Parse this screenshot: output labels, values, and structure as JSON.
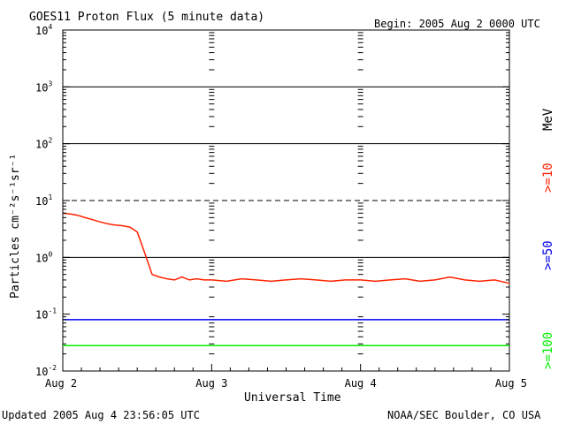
{
  "chart_data": {
    "type": "line",
    "title": "GOES11 Proton Flux (5 minute data)",
    "begin_label": "Begin: 2005 Aug 2 0000 UTC",
    "xlabel": "Universal Time",
    "ylabel": "Particles cm⁻²s⁻¹sr⁻¹",
    "y_scale": "log",
    "ylim": [
      0.01,
      10000
    ],
    "x_unit": "days since 2005 Aug 2 0000 UTC",
    "xlim": [
      0,
      3
    ],
    "x_ticks": [
      {
        "x": 0,
        "label": "Aug 2"
      },
      {
        "x": 1,
        "label": "Aug 3"
      },
      {
        "x": 2,
        "label": "Aug 4"
      },
      {
        "x": 3,
        "label": "Aug 5"
      }
    ],
    "y_ticks": [
      {
        "value": 0.01,
        "base": "10",
        "exp": "-2"
      },
      {
        "value": 0.1,
        "base": "10",
        "exp": "-1"
      },
      {
        "value": 1,
        "base": "10",
        "exp": "0"
      },
      {
        "value": 10,
        "base": "10",
        "exp": "1"
      },
      {
        "value": 100,
        "base": "10",
        "exp": "2"
      },
      {
        "value": 1000,
        "base": "10",
        "exp": "3"
      },
      {
        "value": 10000,
        "base": "10",
        "exp": "4"
      }
    ],
    "threshold_lines": [
      {
        "value": 10,
        "style": "dashed"
      },
      {
        "value": 1,
        "style": "solid"
      },
      {
        "value": 100,
        "style": "solid"
      },
      {
        "value": 1000,
        "style": "solid"
      }
    ],
    "energy_unit": "MeV",
    "series": [
      {
        "name": ">=10",
        "color": "#ff2200",
        "x": [
          0.0,
          0.05,
          0.1,
          0.15,
          0.2,
          0.25,
          0.3,
          0.35,
          0.4,
          0.45,
          0.5,
          0.55,
          0.6,
          0.65,
          0.7,
          0.75,
          0.8,
          0.85,
          0.9,
          0.95,
          1.0,
          1.1,
          1.2,
          1.3,
          1.4,
          1.5,
          1.6,
          1.7,
          1.8,
          1.9,
          2.0,
          2.1,
          2.2,
          2.3,
          2.4,
          2.5,
          2.6,
          2.7,
          2.8,
          2.9,
          3.0
        ],
        "y": [
          6.0,
          5.8,
          5.5,
          5.0,
          4.6,
          4.2,
          3.9,
          3.7,
          3.6,
          3.4,
          2.8,
          1.2,
          0.5,
          0.45,
          0.42,
          0.4,
          0.45,
          0.4,
          0.42,
          0.4,
          0.4,
          0.38,
          0.42,
          0.4,
          0.38,
          0.4,
          0.42,
          0.4,
          0.38,
          0.4,
          0.4,
          0.38,
          0.4,
          0.42,
          0.38,
          0.4,
          0.45,
          0.4,
          0.38,
          0.4,
          0.35
        ]
      },
      {
        "name": ">=50",
        "color": "#0000ee",
        "x": [
          0.0,
          0.1,
          0.2,
          0.3,
          0.4,
          0.5,
          0.6,
          0.7,
          0.8,
          0.9,
          1.0,
          1.1,
          1.2,
          1.3,
          1.4,
          1.5,
          1.6,
          1.7,
          1.8,
          1.9,
          2.0,
          2.1,
          2.2,
          2.3,
          2.4,
          2.5,
          2.6,
          2.7,
          2.8,
          2.9,
          3.0
        ],
        "y": [
          0.08,
          0.08,
          0.08,
          0.08,
          0.08,
          0.08,
          0.08,
          0.08,
          0.08,
          0.08,
          0.08,
          0.08,
          0.08,
          0.08,
          0.08,
          0.08,
          0.08,
          0.08,
          0.08,
          0.08,
          0.08,
          0.08,
          0.08,
          0.08,
          0.08,
          0.08,
          0.08,
          0.08,
          0.08,
          0.08,
          0.08
        ]
      },
      {
        "name": ">=100",
        "color": "#00ee00",
        "x": [
          0.0,
          0.1,
          0.2,
          0.3,
          0.4,
          0.5,
          0.6,
          0.7,
          0.8,
          0.9,
          1.0,
          1.1,
          1.2,
          1.3,
          1.4,
          1.5,
          1.6,
          1.7,
          1.8,
          1.9,
          2.0,
          2.1,
          2.2,
          2.3,
          2.4,
          2.5,
          2.6,
          2.7,
          2.8,
          2.9,
          3.0
        ],
        "y": [
          0.028,
          0.028,
          0.028,
          0.028,
          0.028,
          0.028,
          0.028,
          0.028,
          0.028,
          0.028,
          0.028,
          0.028,
          0.028,
          0.028,
          0.028,
          0.028,
          0.028,
          0.028,
          0.028,
          0.028,
          0.028,
          0.028,
          0.028,
          0.028,
          0.028,
          0.028,
          0.028,
          0.028,
          0.028,
          0.028,
          0.028
        ]
      }
    ],
    "grid": false,
    "legend": "right-vertical"
  },
  "footer": {
    "updated": "Updated 2005 Aug  4 23:56:05 UTC",
    "credit": "NOAA/SEC Boulder, CO USA"
  }
}
